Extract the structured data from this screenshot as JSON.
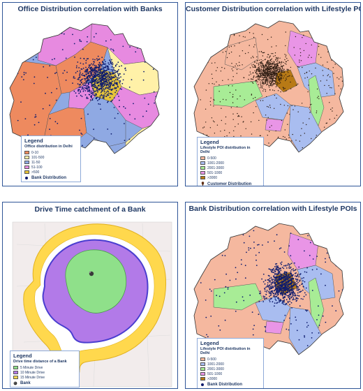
{
  "panels": {
    "office": {
      "title": "Office Distribution correlation with Banks",
      "legend_title": "Legend",
      "legend_subtitle": "Office distribution in Delhi",
      "classes": [
        {
          "label": "0-10",
          "color": "#ee8a5f"
        },
        {
          "label": "101-500",
          "color": "#fff1a8"
        },
        {
          "label": "11-50",
          "color": "#8fa9e3"
        },
        {
          "label": "51-100",
          "color": "#e78ae0"
        },
        {
          "label": ">500",
          "color": "#e6c33a"
        }
      ],
      "marker_label": "Bank Distribution",
      "marker_color": "#0d1b6e"
    },
    "customer": {
      "title": "Customer Distribution correlation with Lifestyle POIs",
      "legend_title": "Legend",
      "legend_subtitle": "Lifestyle POI distribution in Delhi",
      "classes": [
        {
          "label": "0-500",
          "color": "#f5b89f"
        },
        {
          "label": "1001-2000",
          "color": "#a9bdf0"
        },
        {
          "label": "2001-3000",
          "color": "#a8ec96"
        },
        {
          "label": "501-1000",
          "color": "#e995e6"
        },
        {
          "label": ">3000",
          "color": "#b87a16"
        }
      ],
      "marker_label": "Customer Distribution",
      "marker_color": "#2a1a10"
    },
    "drive": {
      "title": "Drive Time catchment of a Bank",
      "legend_title": "Legend",
      "legend_subtitle": "Drive time distance of a Bank",
      "classes": [
        {
          "label": "5 Minute Drive",
          "color": "#8fe08a"
        },
        {
          "label": "10 Minute Drive",
          "color": "#b27ae8"
        },
        {
          "label": "15 Minute Drive",
          "color": "#ffd84d"
        }
      ],
      "marker_label": "Bank",
      "marker_color": "#333333"
    },
    "bank": {
      "title": "Bank Distribution correlation with Lifestyle POIs",
      "legend_title": "Legend",
      "legend_subtitle": "Lifestyle POI distribution in Delhi",
      "classes": [
        {
          "label": "0-500",
          "color": "#f5b89f"
        },
        {
          "label": "1001-2000",
          "color": "#a9bdf0"
        },
        {
          "label": "2001-3000",
          "color": "#a8ec96"
        },
        {
          "label": "501-1000",
          "color": "#e995e6"
        },
        {
          "label": ">3000",
          "color": "#b87a16"
        }
      ],
      "marker_label": "Bank Distribution",
      "marker_color": "#0d1b6e"
    }
  }
}
